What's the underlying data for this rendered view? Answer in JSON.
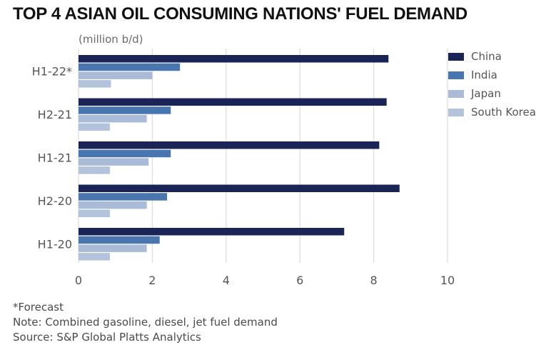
{
  "title": "TOP 4 ASIAN OIL CONSUMING NATIONS' FUEL DEMAND",
  "unit_label": "(million b/d)",
  "footnotes": {
    "forecast": "*Forecast",
    "note": "Note: Combined gasoline, diesel, jet fuel demand",
    "source": "Source: S&P Global Platts Analytics"
  },
  "chart_data": {
    "type": "bar",
    "orientation": "horizontal",
    "categories": [
      "H1-22*",
      "H2-21",
      "H1-21",
      "H2-20",
      "H1-20"
    ],
    "series": [
      {
        "name": "China",
        "color": "#1a2456",
        "values": [
          8.4,
          8.35,
          8.15,
          8.7,
          7.2
        ]
      },
      {
        "name": "India",
        "color": "#4a76b0",
        "values": [
          2.75,
          2.5,
          2.5,
          2.4,
          2.2
        ]
      },
      {
        "name": "Japan",
        "color": "#a9bbd6",
        "values": [
          2.0,
          1.85,
          1.9,
          1.85,
          1.85
        ]
      },
      {
        "name": "South Korea",
        "color": "#b3c3db",
        "values": [
          0.88,
          0.85,
          0.85,
          0.85,
          0.85
        ]
      }
    ],
    "xlim": [
      0,
      10
    ],
    "xticks": [
      "0",
      "2",
      "4",
      "6",
      "8",
      "10"
    ],
    "grid": true,
    "legend_position": "right"
  }
}
